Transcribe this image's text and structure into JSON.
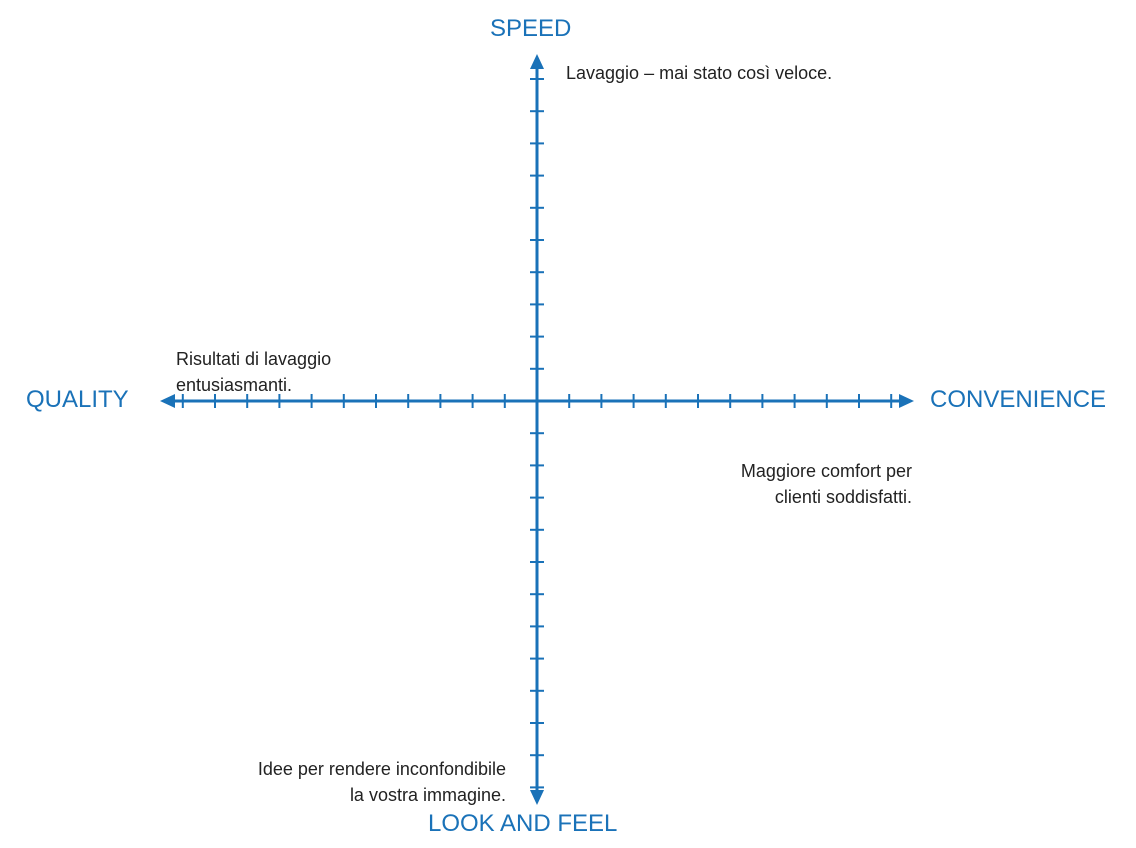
{
  "colors": {
    "axis": "#1a72b8",
    "text": "#222222"
  },
  "axes": {
    "top_label": "SPEED",
    "bottom_label": "LOOK AND FEEL",
    "left_label": "QUALITY",
    "right_label": "CONVENIENCE"
  },
  "notes": {
    "speed": "Lavaggio – mai stato così veloce.",
    "quality": [
      "Risultati di lavaggio",
      "entusiasmanti."
    ],
    "convenience": [
      "Maggiore comfort per",
      "clienti soddisfatti."
    ],
    "look_and_feel": [
      "Idee per rendere inconfondibile",
      "la vostra immagine."
    ]
  }
}
